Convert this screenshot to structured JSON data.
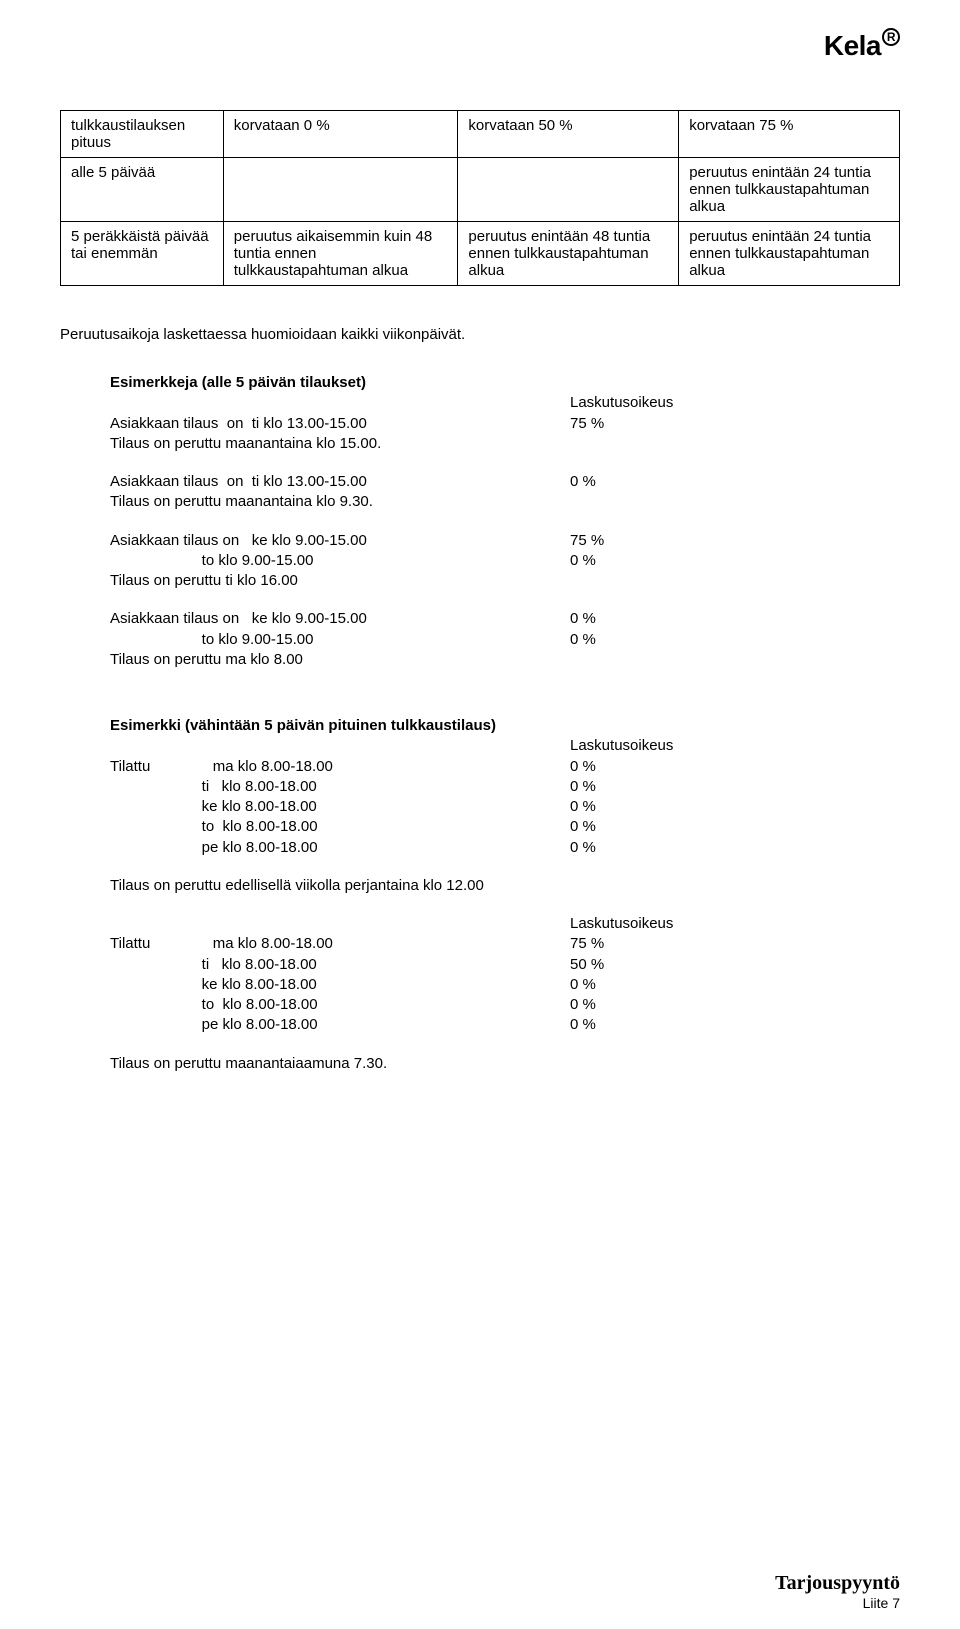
{
  "logo": {
    "text": "Kela",
    "reg": "R"
  },
  "table": {
    "headers": [
      "tulkkaustilauksen pituus",
      "korvataan 0 %",
      "korvataan 50 %",
      "korvataan 75 %"
    ],
    "rows": [
      [
        "alle 5 päivää",
        "",
        "",
        "peruutus enintään 24 tuntia ennen tulkkaustapahtuman alkua"
      ],
      [
        "5 peräkkäistä päivää tai enemmän",
        "peruutus aikaisemmin kuin 48 tuntia ennen tulkkaustapahtuman alkua",
        "peruutus enintään 48 tuntia ennen tulkkaustapahtuman alkua",
        "peruutus enintään 24 tuntia ennen tulkkaustapahtuman alkua"
      ]
    ]
  },
  "intro": "Peruutusaikoja laskettaessa huomioidaan kaikki viikonpäivät.",
  "ex1": {
    "title": "Esimerkkeja (alle 5 päivän tilaukset)",
    "header_right": "Laskutusoikeus",
    "items": [
      {
        "left": "Asiakkaan tilaus  on  ti klo 13.00-15.00",
        "right": "75 %"
      },
      {
        "left": "Tilaus on peruttu maanantaina klo 15.00.",
        "right": ""
      }
    ],
    "items2": [
      {
        "left": "Asiakkaan tilaus  on  ti klo 13.00-15.00",
        "right": "0 %"
      },
      {
        "left": "Tilaus on peruttu maanantaina klo 9.30.",
        "right": ""
      }
    ],
    "items3": [
      {
        "left": "Asiakkaan tilaus on   ke klo 9.00-15.00",
        "right": "75 %"
      },
      {
        "left": "                      to klo 9.00-15.00",
        "right": "0 %"
      },
      {
        "left": "Tilaus on peruttu ti klo 16.00",
        "right": ""
      }
    ],
    "items4": [
      {
        "left": "Asiakkaan tilaus on   ke klo 9.00-15.00",
        "right": "0 %"
      },
      {
        "left": "                      to klo 9.00-15.00",
        "right": "0 %"
      },
      {
        "left": "Tilaus on peruttu ma klo 8.00",
        "right": ""
      }
    ]
  },
  "ex2": {
    "title": "Esimerkki (vähintään 5 päivän pituinen tulkkaustilaus)",
    "header_right": "Laskutusoikeus",
    "block1": [
      {
        "left": "Tilattu               ma klo 8.00-18.00",
        "right": "0 %"
      },
      {
        "left": "                      ti   klo 8.00-18.00",
        "right": "0 %"
      },
      {
        "left": "                      ke klo 8.00-18.00",
        "right": "0 %"
      },
      {
        "left": "                      to  klo 8.00-18.00",
        "right": "0 %"
      },
      {
        "left": "                      pe klo 8.00-18.00",
        "right": "0 %"
      }
    ],
    "cancel1": "Tilaus on peruttu edellisellä viikolla perjantaina klo 12.00",
    "header_right2": "Laskutusoikeus",
    "block2": [
      {
        "left": "Tilattu               ma klo 8.00-18.00",
        "right": "75 %"
      },
      {
        "left": "                      ti   klo 8.00-18.00",
        "right": "50 %"
      },
      {
        "left": "                      ke klo 8.00-18.00",
        "right": "0 %"
      },
      {
        "left": "                      to  klo 8.00-18.00",
        "right": "0 %"
      },
      {
        "left": "                      pe klo 8.00-18.00",
        "right": "0 %"
      }
    ],
    "cancel2": "Tilaus on peruttu maanantaiaamuna 7.30."
  },
  "footer": {
    "title": "Tarjouspyyntö",
    "sub": "Liite 7"
  }
}
